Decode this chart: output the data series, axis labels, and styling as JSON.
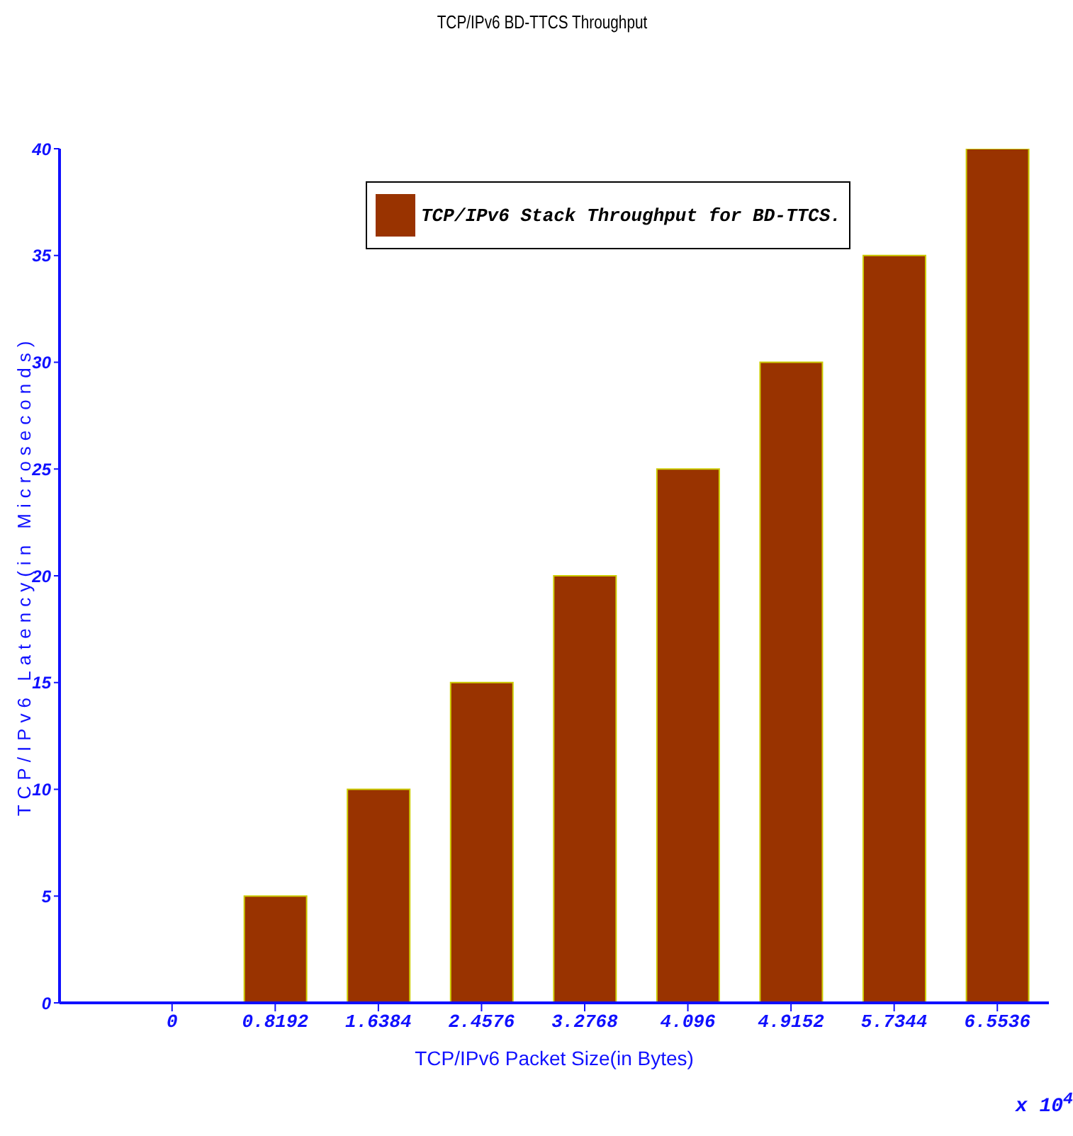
{
  "chart_data": {
    "type": "bar",
    "title": "TCP/IPv6 BD-TTCS Throughput",
    "xlabel": "TCP/IPv6 Packet Size(in Bytes)",
    "ylabel": "TCP/IPv6 Latency(in Microseconds)",
    "categories": [
      "0",
      "0.8192",
      "1.6384",
      "2.4576",
      "3.2768",
      "4.096",
      "4.9152",
      "5.7344",
      "6.5536"
    ],
    "series": [
      {
        "name": "TCP/IPv6 Stack Throughput for BD-TTCS.",
        "color": "#993300",
        "values": [
          0,
          5,
          10,
          15,
          20,
          25,
          30,
          35,
          40
        ]
      }
    ],
    "ylim": [
      0,
      40
    ],
    "yticks": [
      0,
      5,
      10,
      15,
      20,
      25,
      30,
      35,
      40
    ],
    "legend": "top",
    "annotations": [
      "x 10$^{4}$"
    ]
  }
}
